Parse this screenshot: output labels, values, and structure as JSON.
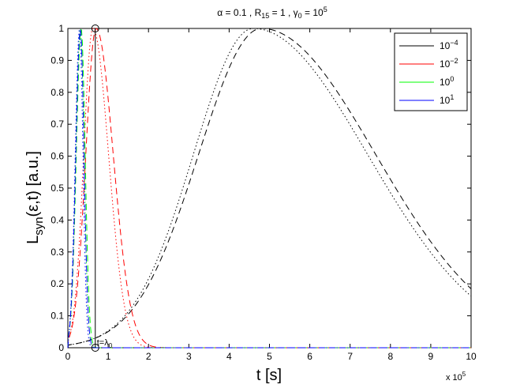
{
  "chart_data": {
    "type": "line",
    "title": {
      "alpha": "α = 0.1",
      "r_pre": "R",
      "r_sub": "15",
      "r_val": " = 1",
      "g_pre": "γ",
      "g_sub": "0",
      "g_val": " = 10",
      "g_sup": "5",
      "sep": " , "
    },
    "xlabel": "t [s]",
    "ylabel": {
      "base": "L",
      "sub": "syn",
      "rest": "(ε,t) [a.u.]"
    },
    "x_multiplier": {
      "text": "x 10",
      "exp": "5"
    },
    "xlim": [
      0,
      10
    ],
    "ylim": [
      0,
      1
    ],
    "xticks": [
      "0",
      "1",
      "2",
      "3",
      "4",
      "5",
      "6",
      "7",
      "8",
      "9",
      "10"
    ],
    "yticks": [
      "0",
      "0.1",
      "0.2",
      "0.3",
      "0.4",
      "0.5",
      "0.6",
      "0.7",
      "0.8",
      "0.9",
      "1"
    ],
    "grid": false,
    "legend_position": "top-right",
    "annotation": {
      "text": "t=λ",
      "sub": "0",
      "x": 0.68
    },
    "series": [
      {
        "name": "10",
        "exp": "−4",
        "color": "#000000",
        "peak_x": 4.8,
        "rise": 2.2,
        "fall": 4.0,
        "dot_peak_x": 4.6,
        "dot_rise": 2.1,
        "dot_fall": 4.0
      },
      {
        "name": "10",
        "exp": "−2",
        "color": "#ff0000",
        "peak_x": 0.7,
        "rise": 0.36,
        "fall": 0.6,
        "dot_peak_x": 0.62,
        "dot_rise": 0.32,
        "dot_fall": 0.55
      },
      {
        "name": "10",
        "exp": "0",
        "color": "#00ff00",
        "peak_x": 0.33,
        "rise": 0.17,
        "fall": 0.14,
        "dot_peak_x": 0.31,
        "dot_rise": 0.16,
        "dot_fall": 0.13
      },
      {
        "name": "10",
        "exp": "1",
        "color": "#0000ff",
        "peak_x": 0.31,
        "rise": 0.16,
        "fall": 0.13,
        "dot_peak_x": 0.29,
        "dot_rise": 0.15,
        "dot_fall": 0.12
      }
    ]
  }
}
